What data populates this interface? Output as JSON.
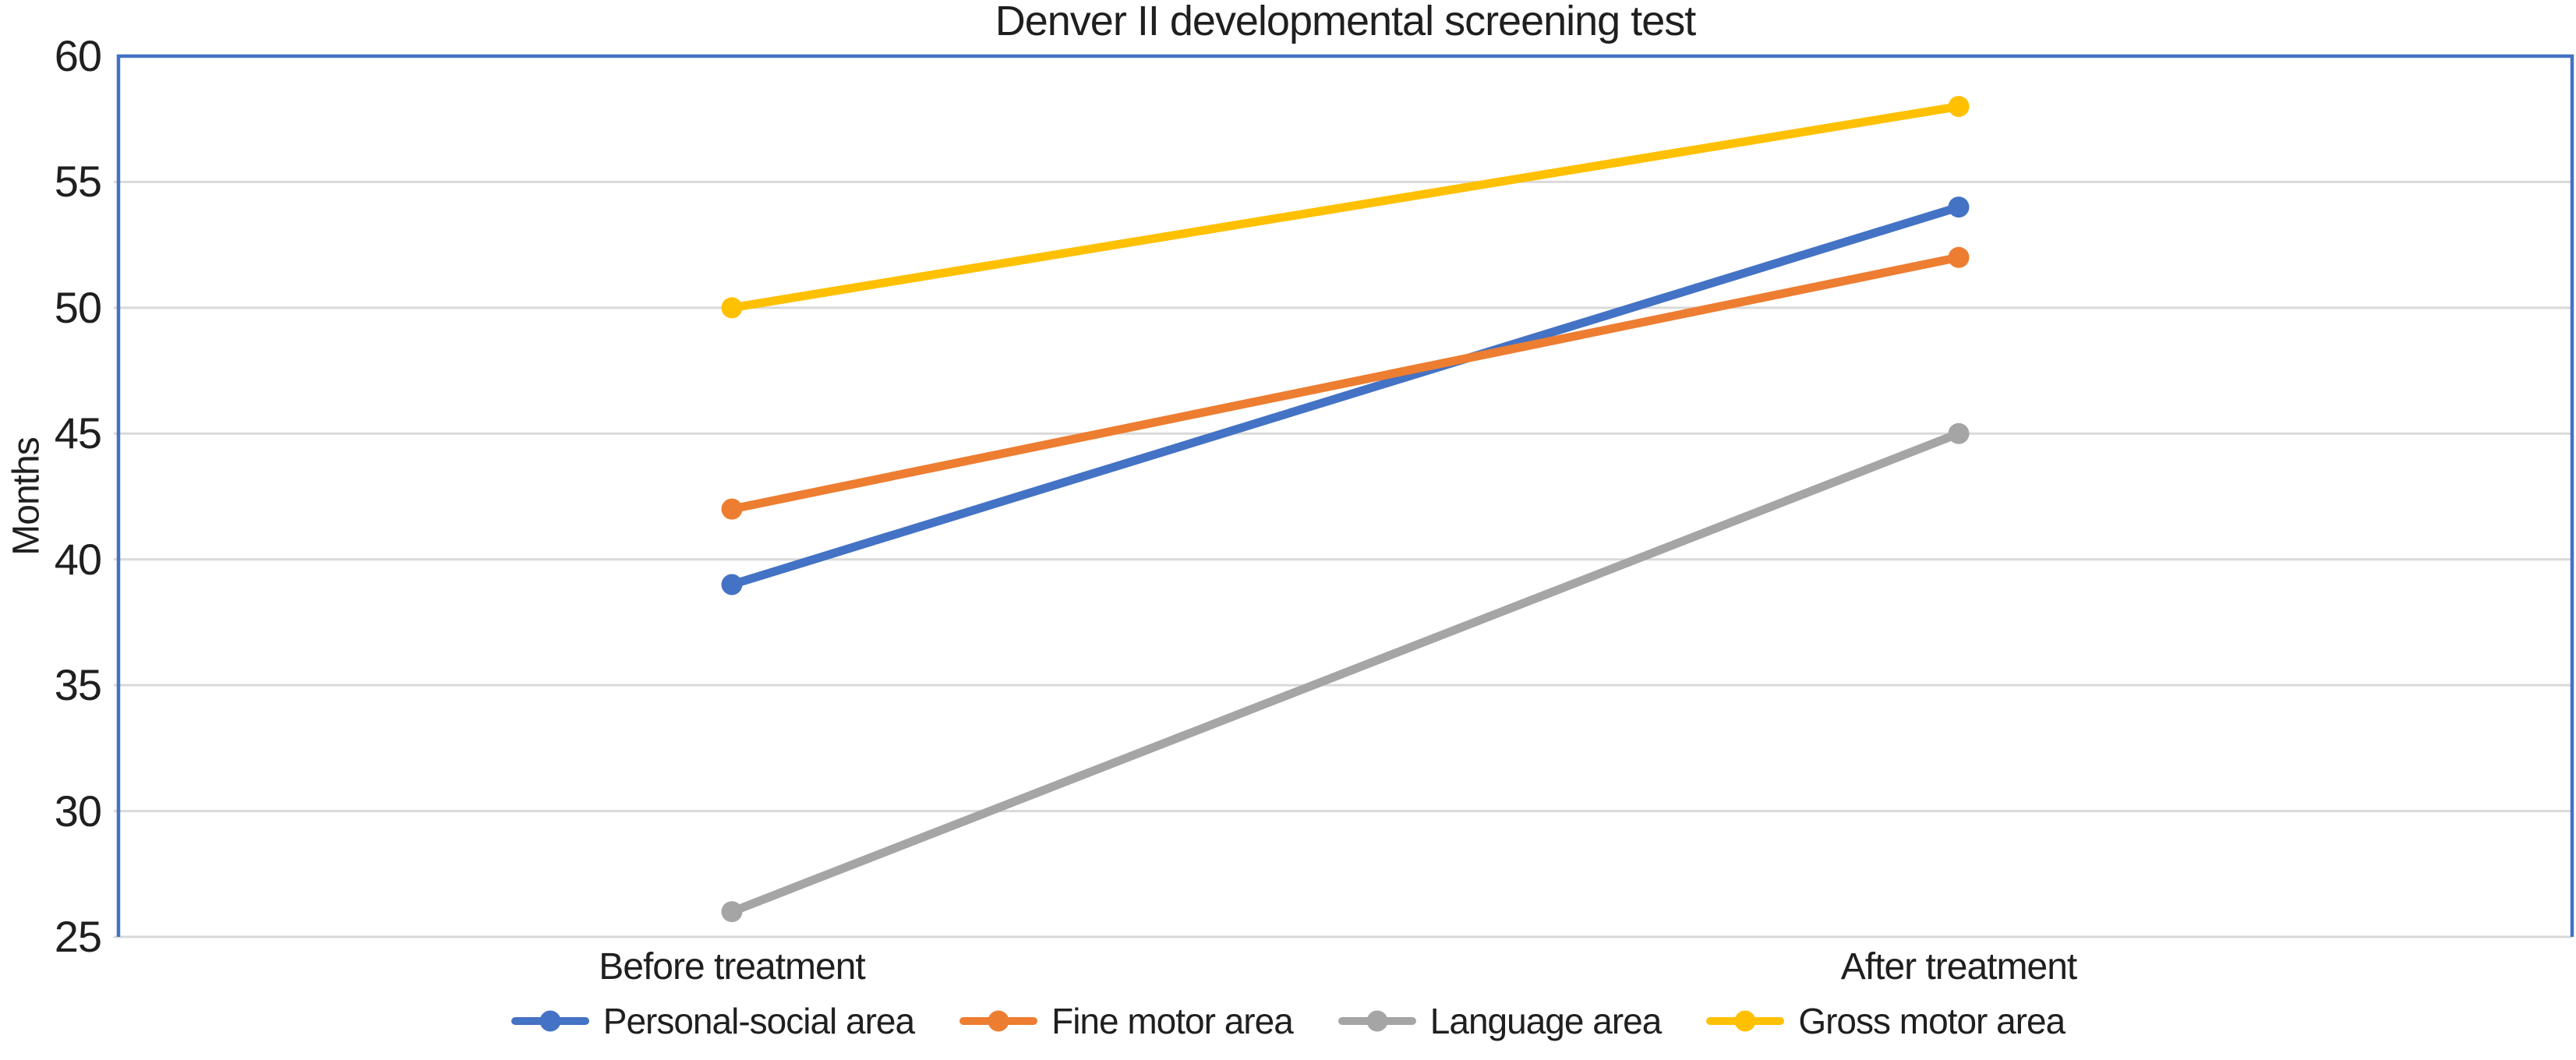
{
  "chart_data": {
    "type": "line",
    "title": "Denver II developmental screening test",
    "ylabel": "Months",
    "xlabel": "",
    "ylim": [
      25,
      60
    ],
    "ytick_step": 5,
    "grid": true,
    "legend_position": "bottom",
    "categories": [
      "Before treatment",
      "After treatment"
    ],
    "series": [
      {
        "name": "Personal-social area",
        "values": [
          39,
          54
        ],
        "color": "#4472C4"
      },
      {
        "name": "Fine motor area",
        "values": [
          42,
          52
        ],
        "color": "#ED7D31"
      },
      {
        "name": "Language area",
        "values": [
          26,
          45
        ],
        "color": "#A5A5A5"
      },
      {
        "name": "Gross motor area",
        "values": [
          50,
          58
        ],
        "color": "#FFC000"
      }
    ],
    "colors": {
      "plot_border": "#4472C4",
      "gridline": "#D9D9D9",
      "text": "#1F1F1F",
      "background": "#FFFFFF"
    }
  }
}
